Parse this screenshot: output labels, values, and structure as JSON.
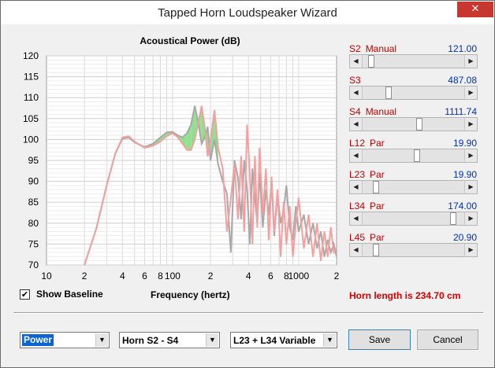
{
  "window": {
    "title": "Tapped Horn Loudspeaker Wizard",
    "close_glyph": "✕"
  },
  "chart_data": {
    "type": "line",
    "title": "Acoustical Power (dB)",
    "xlabel": "Frequency (hertz)",
    "ylabel": "",
    "xscale": "log",
    "xlim": [
      10,
      2000
    ],
    "ylim": [
      70,
      120
    ],
    "yticks": [
      70,
      75,
      80,
      85,
      90,
      95,
      100,
      105,
      110,
      115,
      120
    ],
    "xtick_labels": [
      {
        "x": 10,
        "label": "10"
      },
      {
        "x": 20,
        "label": "2"
      },
      {
        "x": 40,
        "label": "4"
      },
      {
        "x": 60,
        "label": "6"
      },
      {
        "x": 80,
        "label": "8"
      },
      {
        "x": 100,
        "label": "100"
      },
      {
        "x": 200,
        "label": "2"
      },
      {
        "x": 400,
        "label": "4"
      },
      {
        "x": 600,
        "label": "6"
      },
      {
        "x": 800,
        "label": "8"
      },
      {
        "x": 1000,
        "label": "1000"
      },
      {
        "x": 2000,
        "label": "2"
      }
    ],
    "grid": true,
    "colors": {
      "current": "#f2a0a0",
      "baseline": "#a8a8a8",
      "difference_fill": "#90e090",
      "grid": "#d8d8d8",
      "plot_bg": "#ffffff"
    },
    "series": [
      {
        "role": "current",
        "x": [
          20,
          25,
          30,
          35,
          40,
          45,
          50,
          60,
          70,
          80,
          90,
          100,
          110,
          120,
          130,
          140,
          150,
          160,
          170,
          180,
          190,
          200,
          215,
          230,
          250,
          270,
          290,
          310,
          330,
          350,
          370,
          390,
          410,
          430,
          450,
          470,
          490,
          520,
          550,
          580,
          610,
          640,
          680,
          720,
          760,
          800,
          850,
          900,
          950,
          1000,
          1100,
          1200,
          1300,
          1400,
          1500,
          1600,
          1700,
          1800,
          1900,
          2000
        ],
        "y": [
          70,
          79,
          89,
          96.5,
          100.5,
          100.8,
          99.5,
          98,
          98.5,
          99.5,
          100.8,
          101.5,
          100.5,
          99,
          97.5,
          97.5,
          100,
          104,
          108,
          103,
          96,
          100,
          107,
          98,
          93,
          78,
          86,
          94,
          81,
          96,
          78,
          103.5,
          92,
          75,
          96,
          79,
          98,
          82,
          93,
          76,
          91,
          78,
          88,
          72,
          85,
          75,
          84,
          72,
          80,
          86,
          74,
          82,
          72,
          80,
          71,
          78,
          72,
          79,
          73,
          74
        ]
      },
      {
        "role": "baseline",
        "x": [
          20,
          25,
          30,
          35,
          40,
          45,
          50,
          60,
          70,
          80,
          90,
          100,
          110,
          120,
          130,
          140,
          150,
          160,
          170,
          180,
          190,
          200,
          215,
          230,
          250,
          270,
          290,
          310,
          330,
          350,
          370,
          390,
          410,
          430,
          450,
          470,
          490,
          520,
          550,
          580,
          610,
          640,
          680,
          720,
          760,
          800,
          850,
          900,
          950,
          1000,
          1100,
          1200,
          1300,
          1400,
          1500,
          1600,
          1700,
          1800,
          1900,
          2000
        ],
        "y": [
          70,
          79,
          89,
          96.5,
          100.2,
          100.5,
          99.3,
          98.2,
          99,
          100.5,
          101.7,
          101.8,
          101,
          100.5,
          101.5,
          103.5,
          108,
          104,
          99,
          100.5,
          103,
          95,
          100,
          94,
          90,
          87,
          73,
          95,
          91,
          81,
          95,
          88,
          75,
          93,
          86,
          80,
          92,
          79,
          88,
          82,
          90,
          77,
          87,
          80,
          83,
          89,
          79,
          76,
          84,
          78,
          82,
          75,
          80,
          74,
          78,
          72,
          76,
          73,
          75,
          72
        ]
      }
    ]
  },
  "sliders": [
    {
      "label": "S2",
      "mode": "Manual",
      "value": "121.00",
      "fraction": 0.06
    },
    {
      "label": "S3",
      "mode": "",
      "value": "487.08",
      "fraction": 0.24
    },
    {
      "label": "S4",
      "mode": "Manual",
      "value": "1111.74",
      "fraction": 0.56
    },
    {
      "label": "L12",
      "mode": "Par",
      "value": "19.90",
      "fraction": 0.54
    },
    {
      "label": "L23",
      "mode": "Par",
      "value": "19.90",
      "fraction": 0.11
    },
    {
      "label": "L34",
      "mode": "Par",
      "value": "174.00",
      "fraction": 0.92
    },
    {
      "label": "L45",
      "mode": "Par",
      "value": "20.90",
      "fraction": 0.11
    }
  ],
  "show_baseline": {
    "label": "Show Baseline",
    "checked_glyph": "✔"
  },
  "horn_length": "Horn length is 234.70 cm",
  "controls": {
    "plot_select": "Power",
    "horn_select": "Horn S2 - S4",
    "variable_select": "L23 + L34 Variable",
    "save_label": "Save",
    "cancel_label": "Cancel",
    "dropdown_glyph": "▼",
    "arrow_left_glyph": "◀",
    "arrow_right_glyph": "▶"
  }
}
